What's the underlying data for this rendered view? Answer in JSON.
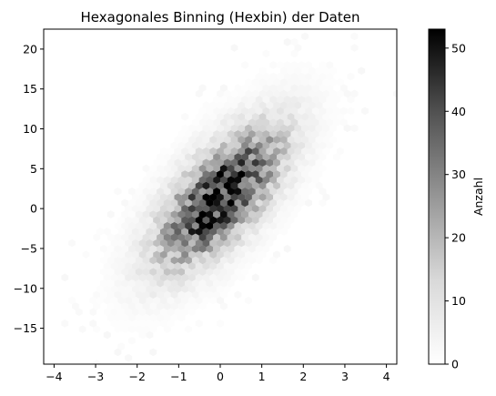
{
  "chart_data": {
    "type": "heatmap",
    "subtype": "hexbin",
    "title": "Hexagonales Binning (Hexbin) der Daten",
    "xlabel": "",
    "ylabel": "",
    "xlim": [
      -4.25,
      4.25
    ],
    "ylim": [
      -19.5,
      22.5
    ],
    "x_ticks": [
      -4,
      -3,
      -2,
      -1,
      0,
      1,
      2,
      3,
      4
    ],
    "y_ticks": [
      -15,
      -10,
      -5,
      0,
      5,
      10,
      15,
      20
    ],
    "colormap": "Greys",
    "colorbar": {
      "label": "Anzahl",
      "min": 0,
      "max": 53,
      "ticks": [
        0,
        10,
        20,
        30,
        40,
        50
      ]
    },
    "distribution": {
      "center_x": 0.0,
      "center_y": 1.5,
      "sd_x": 1.0,
      "sd_y": 5.8,
      "correlation": 0.68,
      "peak_count": 53
    },
    "grid": false,
    "legend": "none"
  }
}
